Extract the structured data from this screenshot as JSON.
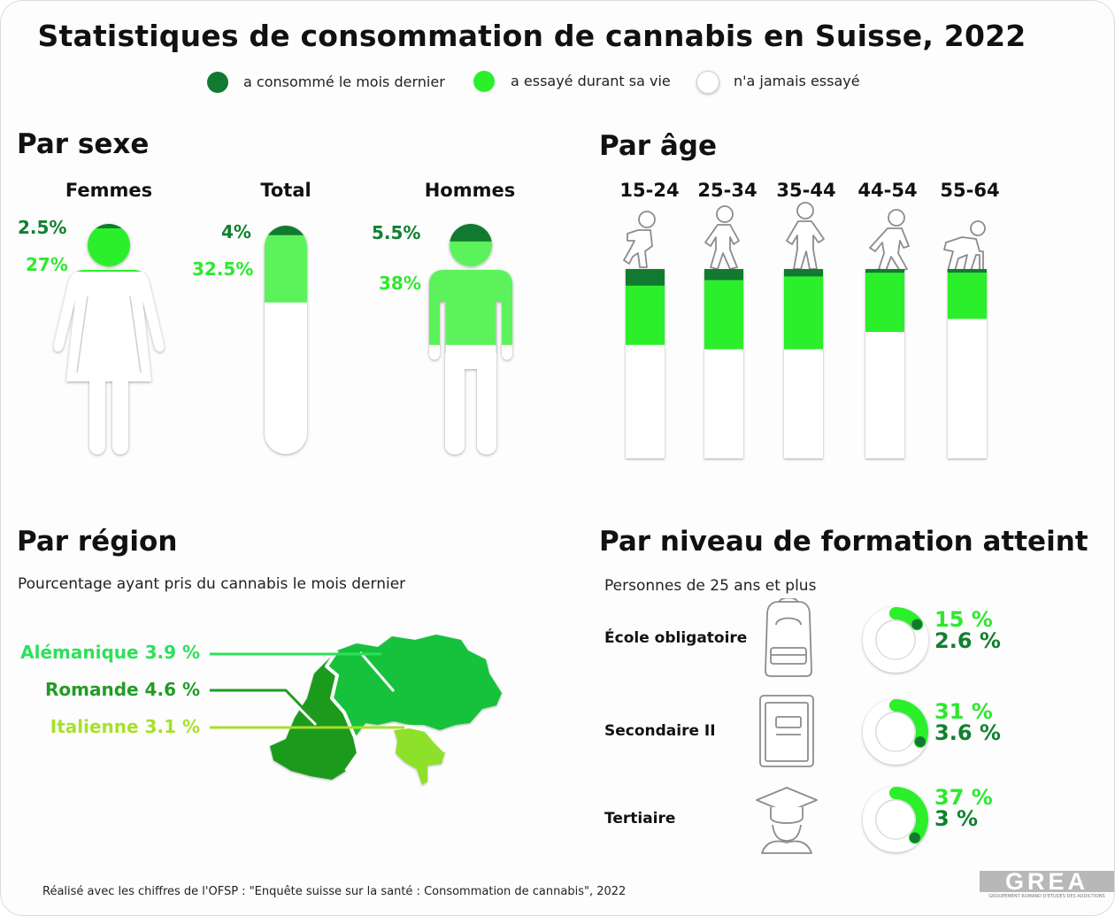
{
  "title": "Statistiques de consommation de cannabis en Suisse, 2022",
  "legend": [
    {
      "label": "a consommé le mois dernier",
      "color": "#127a30"
    },
    {
      "label": "a essayé durant sa vie",
      "color": "#2bef2b"
    },
    {
      "label": "n'a jamais essayé",
      "color": "#ffffff"
    }
  ],
  "sexe": {
    "heading": "Par sexe",
    "groups": [
      {
        "label": "Femmes",
        "month": 2.5,
        "life": 27,
        "month_text": "2.5%",
        "life_text": "27%"
      },
      {
        "label": "Total",
        "month": 4,
        "life": 32.5,
        "month_text": "4%",
        "life_text": "32.5%"
      },
      {
        "label": "Hommes",
        "month": 5.5,
        "life": 38,
        "month_text": "5.5%",
        "life_text": "38%"
      }
    ]
  },
  "age": {
    "heading": "Par âge",
    "groups": [
      {
        "label": "15-24",
        "life": 35,
        "month": 9
      },
      {
        "label": "25-34",
        "life": 37,
        "month": 6
      },
      {
        "label": "35-44",
        "life": 37,
        "month": 4
      },
      {
        "label": "44-54",
        "life": 29,
        "month": 2
      },
      {
        "label": "55-64",
        "life": 23,
        "month": 1
      }
    ]
  },
  "region": {
    "heading": "Par région",
    "subtitle": "Pourcentage ayant pris du cannabis le mois dernier",
    "items": [
      {
        "label": "Alémanique 3.9 %",
        "value": 3.9,
        "color": "#12c23a"
      },
      {
        "label": "Romande 4.6 %",
        "value": 4.6,
        "color": "#1e9a1e"
      },
      {
        "label": "Italienne 3.1 %",
        "value": 3.1,
        "color": "#8ee12a"
      }
    ]
  },
  "formation": {
    "heading": "Par niveau de formation atteint",
    "subtitle": "Personnes de 25 ans et plus",
    "items": [
      {
        "label": "École obligatoire",
        "life": 15,
        "month": 2.6,
        "life_text": "15 %",
        "month_text": "2.6 %"
      },
      {
        "label": "Secondaire II",
        "life": 31,
        "month": 3.6,
        "life_text": "31 %",
        "month_text": "3.6 %"
      },
      {
        "label": "Tertiaire",
        "life": 37,
        "month": 3,
        "life_text": "37 %",
        "month_text": "3 %"
      }
    ]
  },
  "chart_data": [
    {
      "type": "bar",
      "title": "Par sexe",
      "categories": [
        "Femmes",
        "Total",
        "Hommes"
      ],
      "series": [
        {
          "name": "a consommé le mois dernier",
          "values": [
            2.5,
            4,
            5.5
          ]
        },
        {
          "name": "a essayé durant sa vie",
          "values": [
            27,
            32.5,
            38
          ]
        }
      ]
    },
    {
      "type": "bar",
      "title": "Par âge",
      "categories": [
        "15-24",
        "25-34",
        "35-44",
        "44-54",
        "55-64"
      ],
      "series": [
        {
          "name": "a consommé le mois dernier",
          "values": [
            9,
            6,
            4,
            2,
            1
          ]
        },
        {
          "name": "a essayé durant sa vie",
          "values": [
            35,
            37,
            37,
            29,
            23
          ]
        }
      ]
    },
    {
      "type": "bar",
      "title": "Par région",
      "categories": [
        "Alémanique",
        "Romande",
        "Italienne"
      ],
      "series": [
        {
          "name": "a consommé le mois dernier",
          "values": [
            3.9,
            4.6,
            3.1
          ]
        }
      ]
    },
    {
      "type": "bar",
      "title": "Par niveau de formation atteint",
      "categories": [
        "École obligatoire",
        "Secondaire II",
        "Tertiaire"
      ],
      "series": [
        {
          "name": "a essayé durant sa vie",
          "values": [
            15,
            31,
            37
          ]
        },
        {
          "name": "a consommé le mois dernier",
          "values": [
            2.6,
            3.6,
            3
          ]
        }
      ]
    }
  ],
  "footer": "Réalisé avec les chiffres de l'OFSP  : \"Enquête suisse sur la santé : Consommation de cannabis\", 2022",
  "logo": {
    "name": "GREA",
    "tagline": "GROUPEMENT ROMAND D'ETUDES DES ADDICTIONS"
  }
}
